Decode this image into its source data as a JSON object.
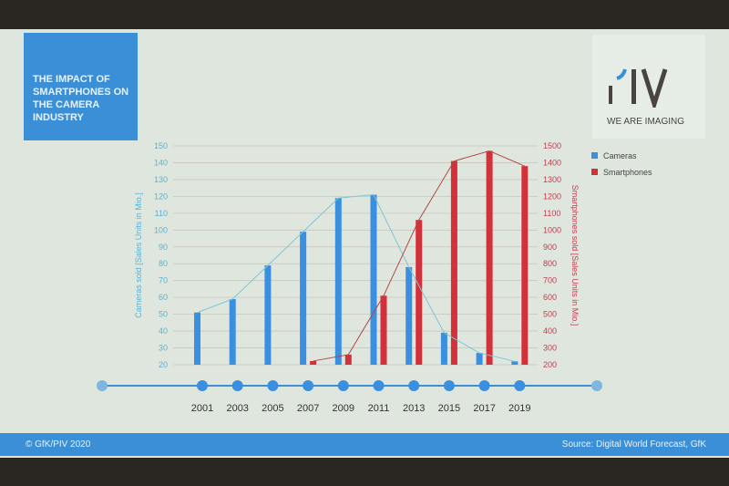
{
  "slide": {
    "title": "THE IMPACT OF SMARTPHONES ON THE CAMERA INDUSTRY",
    "logo_text": "PIV",
    "logo_tagline": "WE ARE IMAGING",
    "copyright": "© GfK/PIV 2020",
    "source": "Source: Digital World Forecast, GfK"
  },
  "colors": {
    "cameras": "#3a8fe0",
    "smartphones": "#d2313a",
    "cameras_line": "#7cc6d6",
    "smartphones_line": "#b04848",
    "brand_blue": "#3a8fd6"
  },
  "chart_data": {
    "type": "bar",
    "categories": [
      "2001",
      "2003",
      "2005",
      "2007",
      "2009",
      "2011",
      "2013",
      "2015",
      "2017",
      "2019"
    ],
    "series": [
      {
        "name": "Cameras",
        "axis": "left",
        "values": [
          51,
          59,
          79,
          99,
          119,
          121,
          78,
          39,
          27,
          22
        ]
      },
      {
        "name": "Smartphones",
        "axis": "right",
        "values": [
          null,
          null,
          null,
          222,
          260,
          610,
          1060,
          1410,
          1470,
          1380
        ]
      }
    ],
    "trend_lines": true,
    "ylabel": "Cameras sold [Sales Units in Mio.]",
    "ylabel_right": "Smartphones sold [Sales Units in Mio.]",
    "ylim": [
      20,
      150
    ],
    "yticks": [
      20,
      30,
      40,
      50,
      60,
      70,
      80,
      90,
      100,
      110,
      120,
      130,
      140,
      150
    ],
    "ylim_right": [
      200,
      1500
    ],
    "yticks_right": [
      200,
      300,
      400,
      500,
      600,
      700,
      800,
      900,
      1000,
      1100,
      1200,
      1300,
      1400,
      1500
    ],
    "grid": true,
    "legend": "top-right"
  }
}
